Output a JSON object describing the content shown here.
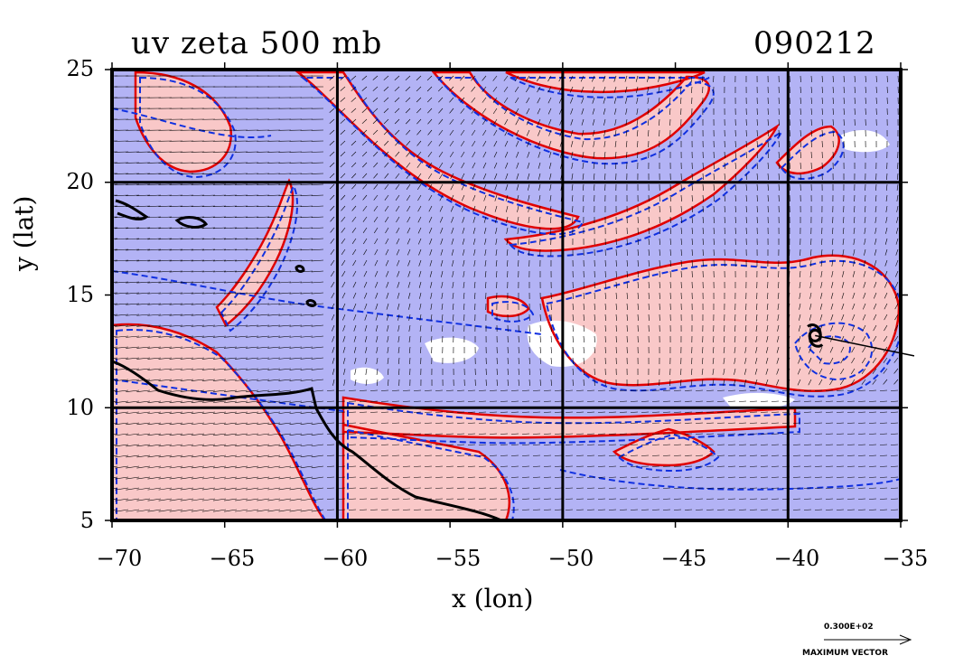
{
  "title_left": "uv zeta 500 mb",
  "title_right": "090212",
  "axes": {
    "xlabel": "x (lon)",
    "ylabel": "y (lat)",
    "xticks": [
      "−70",
      "−65",
      "−60",
      "−55",
      "−50",
      "−45",
      "−40",
      "−35"
    ],
    "yticks": [
      "25",
      "20",
      "15",
      "10",
      "5"
    ]
  },
  "map": {
    "lon_range": [
      -70,
      -35
    ],
    "lat_range": [
      5,
      25
    ],
    "gridlines_lon": [
      -60,
      -50,
      -40
    ],
    "gridlines_lat": [
      20,
      10
    ],
    "colors": {
      "negative_fill": "#b3b3f5",
      "positive_fill": "#f9c8c8",
      "positive_contour": "#e00000",
      "negative_contour": "#1030e0",
      "coast": "#000000",
      "vectors": "#000000"
    },
    "storm_symbol_lonlat": [
      -38.8,
      13.2
    ],
    "track_end_lonlat": [
      -34.4,
      12.3
    ]
  },
  "vector_legend": {
    "value": "0.300E+02",
    "label": "MAXIMUM VECTOR"
  }
}
